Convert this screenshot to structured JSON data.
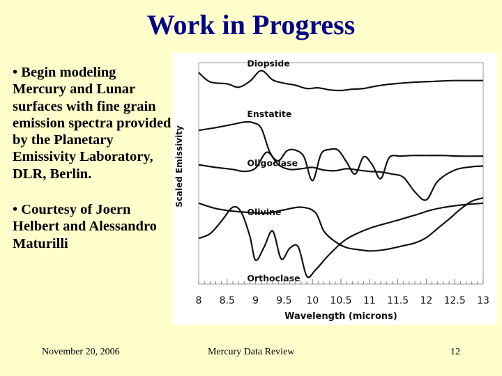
{
  "slide": {
    "title": "Work in Progress",
    "bullets": [
      "• Begin modeling Mercury and Lunar surfaces with fine grain emission spectra provided by the Planetary Emissivity Laboratory, DLR, Berlin.",
      "• Courtesy of Joern Helbert and Alessandro Maturilli"
    ],
    "footer": {
      "date": "November 20, 2006",
      "center": "Mercury Data Review",
      "page": "12"
    },
    "background_color": "#ffffcc",
    "title_color": "#00008b"
  },
  "chart_data": {
    "type": "line",
    "xlabel": "Wavelength (microns)",
    "ylabel": "Scaled Emissivity",
    "xlim": [
      8,
      13
    ],
    "xticks": [
      "8",
      "8.5",
      "9",
      "9.5",
      "10",
      "10.5",
      "11",
      "11.5",
      "12",
      "12.5",
      "13"
    ],
    "y_ticks_shown": false,
    "grid": false,
    "series": [
      {
        "name": "Diopside",
        "x": [
          8,
          8.2,
          8.5,
          8.7,
          8.9,
          9.1,
          9.3,
          9.5,
          9.7,
          9.9,
          10.1,
          10.3,
          10.5,
          10.7,
          10.9,
          11.1,
          11.3,
          11.5,
          11.7,
          11.9,
          12.1,
          12.3,
          12.5,
          12.7,
          13
        ],
        "y": [
          0.975,
          0.905,
          0.89,
          0.865,
          0.91,
          0.99,
          0.92,
          0.895,
          0.88,
          0.855,
          0.86,
          0.845,
          0.84,
          0.85,
          0.855,
          0.872,
          0.885,
          0.893,
          0.9,
          0.905,
          0.908,
          0.912,
          0.915,
          0.915,
          0.915
        ]
      },
      {
        "name": "Enstatite",
        "x": [
          8,
          8.3,
          8.6,
          8.8,
          8.95,
          9.1,
          9.25,
          9.4,
          9.55,
          9.7,
          9.85,
          10,
          10.15,
          10.3,
          10.45,
          10.6,
          10.75,
          10.9,
          11.05,
          11.2,
          11.35,
          11.55,
          11.75,
          12,
          12.3,
          12.6,
          13
        ],
        "y": [
          0.54,
          0.56,
          0.585,
          0.602,
          0.598,
          0.555,
          0.375,
          0.31,
          0.385,
          0.39,
          0.34,
          0.16,
          0.36,
          0.395,
          0.39,
          0.3,
          0.21,
          0.34,
          0.28,
          0.175,
          0.335,
          0.345,
          0.35,
          0.35,
          0.35,
          0.345,
          0.345
        ]
      },
      {
        "name": "Oligoclase",
        "x": [
          8,
          8.3,
          8.6,
          8.8,
          9,
          9.2,
          9.4,
          9.6,
          9.8,
          10,
          10.2,
          10.4,
          10.6,
          10.8,
          11,
          11.2,
          11.4,
          11.6,
          11.8,
          12,
          12.2,
          12.5,
          12.8,
          13
        ],
        "y": [
          0.28,
          0.26,
          0.245,
          0.23,
          0.255,
          0.375,
          0.28,
          0.245,
          0.25,
          0.26,
          0.24,
          0.235,
          0.25,
          0.24,
          0.23,
          0.225,
          0.21,
          0.185,
          0.075,
          0.015,
          0.155,
          0.24,
          0.265,
          0.27
        ]
      },
      {
        "name": "Olivine",
        "x": [
          8,
          8.3,
          8.6,
          8.9,
          9.2,
          9.5,
          9.8,
          10.05,
          10.2,
          10.4,
          10.6,
          10.8,
          11,
          11.2,
          11.4,
          11.6,
          11.8,
          12,
          12.2,
          12.4,
          12.6,
          12.8,
          13
        ],
        "y": [
          -0.01,
          -0.05,
          -0.07,
          -0.08,
          -0.085,
          -0.06,
          -0.04,
          -0.08,
          -0.22,
          -0.3,
          -0.345,
          -0.36,
          -0.37,
          -0.365,
          -0.35,
          -0.33,
          -0.31,
          -0.27,
          -0.2,
          -0.13,
          -0.055,
          0.005,
          0.03
        ]
      },
      {
        "name": "Orthoclase",
        "x": [
          8,
          8.2,
          8.4,
          8.6,
          8.75,
          8.9,
          9,
          9.15,
          9.3,
          9.45,
          9.6,
          9.75,
          9.9,
          10.05,
          10.3,
          10.6,
          11,
          11.4,
          11.8,
          12.1,
          12.4,
          12.7,
          13
        ],
        "y": [
          -0.275,
          -0.24,
          -0.145,
          -0.04,
          -0.08,
          -0.26,
          -0.44,
          -0.34,
          -0.22,
          -0.43,
          -0.35,
          -0.34,
          -0.56,
          -0.515,
          -0.395,
          -0.28,
          -0.2,
          -0.15,
          -0.1,
          -0.06,
          -0.035,
          -0.02,
          -0.01
        ]
      }
    ],
    "annotations": [
      "Diopside",
      "Enstatite",
      "Oligoclase",
      "Olivine",
      "Orthoclase"
    ]
  }
}
